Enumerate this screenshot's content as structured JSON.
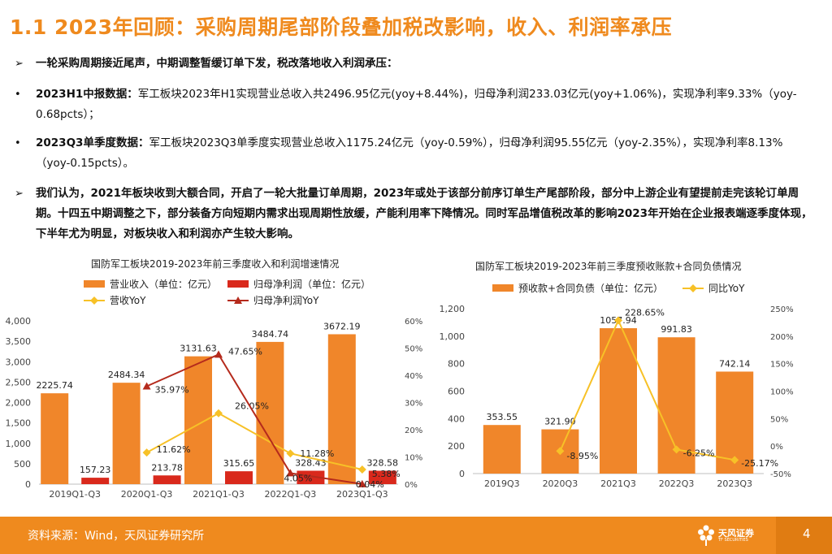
{
  "page": {
    "title": "1.1 2023年回顾：采购周期尾部阶段叠加税改影响，收入、利润率承压",
    "bullets": [
      {
        "marker": "➢",
        "bold": "一轮采购周期接近尾声，中期调整暂缓订单下发，税改落地收入利润承压：",
        "text": ""
      },
      {
        "marker": "•",
        "bold": "2023H1中报数据：",
        "text": "军工板块2023年H1实现营业总收入共2496.95亿元(yoy+8.44%)，归母净利润233.03亿元(yoy+1.06%)，实现净利率9.33%（yoy-0.68pcts）；"
      },
      {
        "marker": "•",
        "bold": "2023Q3单季度数据：",
        "text": "军工板块2023Q3单季度实现营业总收入1175.24亿元（yoy-0.59%），归母净利润95.55亿元（yoy-2.35%），实现净利率8.13%（yoy-0.15pcts）。"
      },
      {
        "marker": "➢",
        "bold": "我们认为，2021年板块收到大额合同，开启了一轮大批量订单周期，2023年或处于该部分前序订单生产尾部阶段，部分中上游企业有望提前走完该轮订单周期。十四五中期调整之下，部分装备方向短期内需求出现周期性放缓，产能利用率下降情况。同时军品增值税改革的影响2023年开始在企业报表端逐季度体现，下半年尤为明显，对板块收入和利润亦产生较大影响。",
        "text": ""
      }
    ],
    "footer": {
      "source": "资料来源：Wind，天风证券研究所",
      "page_number": "4",
      "logo_text": "天风证券",
      "logo_sub": "TF SECURITIES"
    }
  },
  "chart_data": [
    {
      "type": "bar",
      "title": "国防军工板块2019-2023年前三季度收入和利润增速情况",
      "categories": [
        "2019Q1-Q3",
        "2020Q1-Q3",
        "2021Q1-Q3",
        "2022Q1-Q3",
        "2023Q1-Q3"
      ],
      "series": [
        {
          "name": "营业收入（单位：亿元）",
          "kind": "bar",
          "axis": "left",
          "color": "#f0862a",
          "values": [
            2225.74,
            2484.34,
            3131.63,
            3484.74,
            3672.19
          ],
          "labels": [
            "2225.74",
            "2484.34",
            "3131.63",
            "3484.74",
            "3672.19"
          ]
        },
        {
          "name": "归母净利润（单位：亿元）",
          "kind": "bar",
          "axis": "left",
          "color": "#d9291c",
          "values": [
            157.23,
            213.78,
            315.65,
            328.43,
            328.58
          ],
          "labels": [
            "157.23",
            "213.78",
            "315.65",
            "328.43",
            "328.58"
          ]
        },
        {
          "name": "营收YoY",
          "kind": "line",
          "axis": "right",
          "color": "#f7c127",
          "values": [
            null,
            11.62,
            26.05,
            11.28,
            5.38
          ],
          "labels": [
            "",
            "11.62%",
            "26.05%",
            "11.28%",
            "5.38%"
          ]
        },
        {
          "name": "归母净利润YoY",
          "kind": "line",
          "axis": "right",
          "color": "#b52a1c",
          "values": [
            null,
            35.97,
            47.65,
            4.05,
            0.04
          ],
          "labels": [
            "",
            "35.97%",
            "47.65%",
            "4.05%",
            "0.04%"
          ]
        }
      ],
      "ylim_left": [
        0,
        4000
      ],
      "yticks_left": [
        "0",
        "500",
        "1,000",
        "1,500",
        "2,000",
        "2,500",
        "3,000",
        "3,500",
        "4,000"
      ],
      "ylim_right": [
        0,
        60
      ],
      "yticks_right": [
        "0%",
        "10%",
        "20%",
        "30%",
        "40%",
        "50%",
        "60%"
      ],
      "legend": "top"
    },
    {
      "type": "bar",
      "title": "国防军工板块2019-2023年前三季度预收账款+合同负债情况",
      "categories": [
        "2019Q3",
        "2020Q3",
        "2021Q3",
        "2022Q3",
        "2023Q3"
      ],
      "series": [
        {
          "name": "预收款+合同负债（单位：亿元）",
          "kind": "bar",
          "axis": "left",
          "color": "#f0862a",
          "values": [
            353.55,
            321.9,
            1057.94,
            991.83,
            742.14
          ],
          "labels": [
            "353.55",
            "321.90",
            "1057.94",
            "991.83",
            "742.14"
          ]
        },
        {
          "name": "同比YoY",
          "kind": "line",
          "axis": "right",
          "color": "#f7c127",
          "values": [
            null,
            -8.95,
            228.65,
            -6.25,
            -25.17
          ],
          "labels": [
            "",
            "-8.95%",
            "228.65%",
            "-6.25%",
            "-25.17%"
          ]
        }
      ],
      "ylim_left": [
        0,
        1200
      ],
      "yticks_left": [
        "0",
        "200",
        "400",
        "600",
        "800",
        "1,000",
        "1,200"
      ],
      "ylim_right": [
        -50,
        250
      ],
      "yticks_right": [
        "-50%",
        "0%",
        "50%",
        "100%",
        "150%",
        "200%",
        "250%"
      ],
      "legend": "top"
    }
  ]
}
